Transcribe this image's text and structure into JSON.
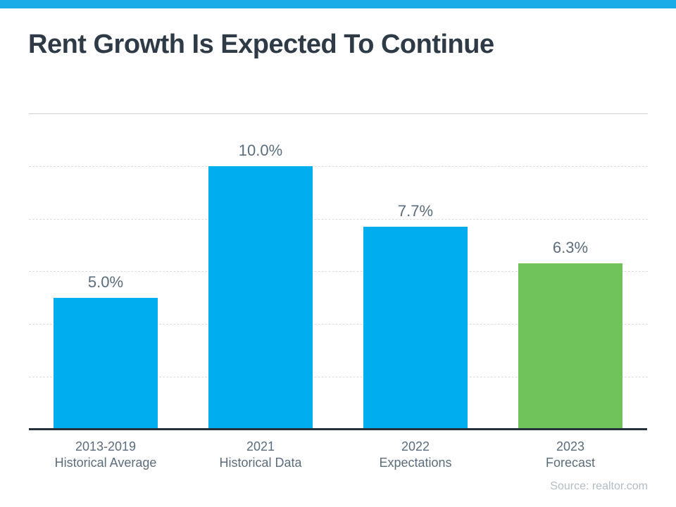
{
  "page": {
    "title": "Rent Growth Is Expected To Continue",
    "source_note": "Source: realtor.com"
  },
  "theme": {
    "accent_bar_color": "#1AACE9",
    "title_color": "#2E3B47",
    "label_color": "#5B6C7C",
    "gridline_solid_color": "#CFCFCF",
    "gridline_dashed_color": "#DDDDDD",
    "axis_color": "#27323D",
    "source_color": "#B3BBC2",
    "bar_blue": "#00AEEF",
    "bar_green": "#70C25B"
  },
  "chart_data": {
    "type": "bar",
    "title": "Rent Growth Is Expected To Continue",
    "categories": [
      [
        "2013-2019",
        "Historical Average"
      ],
      [
        "2021",
        "Historical Data"
      ],
      [
        "2022",
        "Expectations"
      ],
      [
        "2023",
        "Forecast"
      ]
    ],
    "values": [
      5.0,
      10.0,
      7.7,
      6.3
    ],
    "value_labels": [
      "5.0%",
      "10.0%",
      "7.7%",
      "6.3%"
    ],
    "bar_colors": [
      "#00AEEF",
      "#00AEEF",
      "#00AEEF",
      "#70C25B"
    ],
    "ylim": [
      0,
      12
    ],
    "gridline_values": [
      12,
      10,
      8,
      6,
      4,
      2
    ],
    "grid": true,
    "legend": false,
    "xlabel": "",
    "ylabel": "",
    "source": "Source: realtor.com"
  }
}
